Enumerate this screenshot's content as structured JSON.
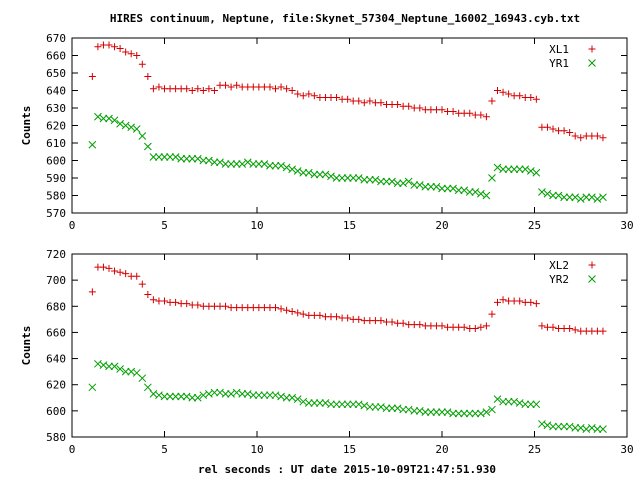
{
  "title": "HIRES continuum, Neptune, file:Skynet_57304_Neptune_16002_16943.cyb.txt",
  "xlabel": "rel seconds : UT date 2015-10-09T21:47:51.930",
  "colors": {
    "red": "#d40000",
    "green": "#00a000",
    "axis": "#000000"
  },
  "chart_data": [
    {
      "type": "scatter",
      "ylabel": "Counts",
      "xlim": [
        0,
        30
      ],
      "ylim": [
        570,
        670
      ],
      "xticks": [
        0,
        5,
        10,
        15,
        20,
        25,
        30
      ],
      "yticks": [
        570,
        580,
        590,
        600,
        610,
        620,
        630,
        640,
        650,
        660,
        670
      ],
      "legend_position": "top-right",
      "x": [
        1.1,
        1.4,
        1.7,
        2.0,
        2.3,
        2.6,
        2.9,
        3.2,
        3.5,
        3.8,
        4.1,
        4.4,
        4.7,
        5.0,
        5.3,
        5.6,
        5.9,
        6.2,
        6.5,
        6.8,
        7.1,
        7.4,
        7.7,
        8.0,
        8.3,
        8.6,
        8.9,
        9.2,
        9.5,
        9.8,
        10.1,
        10.4,
        10.7,
        11.0,
        11.3,
        11.6,
        11.9,
        12.2,
        12.5,
        12.8,
        13.1,
        13.4,
        13.7,
        14.0,
        14.3,
        14.6,
        14.9,
        15.2,
        15.5,
        15.8,
        16.1,
        16.4,
        16.7,
        17.0,
        17.3,
        17.6,
        17.9,
        18.2,
        18.5,
        18.8,
        19.1,
        19.4,
        19.7,
        20.0,
        20.3,
        20.6,
        20.9,
        21.2,
        21.5,
        21.8,
        22.1,
        22.4,
        22.7,
        23.0,
        23.3,
        23.6,
        23.9,
        24.2,
        24.5,
        24.8,
        25.1,
        25.4,
        25.7,
        26.0,
        26.3,
        26.6,
        26.9,
        27.2,
        27.5,
        27.8,
        28.1,
        28.4,
        28.7
      ],
      "series": [
        {
          "name": "XL1",
          "marker": "plus",
          "color": "#d40000",
          "values": [
            648,
            665,
            666,
            666,
            665,
            664,
            662,
            661,
            660,
            655,
            648,
            641,
            642,
            641,
            641,
            641,
            641,
            641,
            640,
            641,
            640,
            641,
            640,
            643,
            643,
            642,
            643,
            642,
            642,
            642,
            642,
            642,
            642,
            641,
            642,
            641,
            640,
            638,
            637,
            638,
            637,
            636,
            636,
            636,
            636,
            635,
            635,
            634,
            634,
            633,
            634,
            633,
            633,
            632,
            632,
            632,
            631,
            631,
            630,
            630,
            629,
            629,
            629,
            629,
            628,
            628,
            627,
            627,
            627,
            626,
            626,
            625,
            634,
            640,
            639,
            638,
            637,
            637,
            636,
            636,
            635,
            null,
            null,
            null,
            null,
            null,
            null,
            null,
            null,
            null,
            null,
            null,
            null
          ]
        },
        {
          "name": "YR1",
          "marker": "cross",
          "color": "#00a000",
          "values": [
            609,
            625,
            624,
            624,
            623,
            621,
            620,
            619,
            618,
            614,
            608,
            602,
            602,
            602,
            602,
            602,
            601,
            601,
            601,
            601,
            600,
            600,
            599,
            599,
            598,
            598,
            598,
            598,
            599,
            598,
            598,
            598,
            597,
            597,
            597,
            596,
            595,
            594,
            593,
            593,
            592,
            592,
            592,
            591,
            590,
            590,
            590,
            590,
            590,
            589,
            589,
            589,
            588,
            588,
            588,
            587,
            587,
            588,
            586,
            586,
            585,
            585,
            585,
            584,
            584,
            584,
            583,
            583,
            582,
            582,
            581,
            580,
            590,
            596,
            595,
            595,
            595,
            595,
            595,
            594,
            593,
            null,
            null,
            null,
            null,
            null,
            null,
            null,
            null,
            null,
            null,
            null,
            null
          ]
        }
      ],
      "tail": {
        "x": [
          25.4,
          25.7,
          26.0,
          26.3,
          26.6,
          26.9,
          27.2,
          27.5,
          27.8,
          28.1,
          28.4,
          28.7
        ],
        "XL1": [
          619,
          619,
          618,
          617,
          617,
          616,
          614,
          613,
          614,
          614,
          614,
          613
        ],
        "YR1": [
          582,
          581,
          580,
          580,
          579,
          579,
          579,
          578,
          579,
          579,
          578,
          579
        ]
      }
    },
    {
      "type": "scatter",
      "ylabel": "Counts",
      "xlim": [
        0,
        30
      ],
      "ylim": [
        580,
        720
      ],
      "xticks": [
        0,
        5,
        10,
        15,
        20,
        25,
        30
      ],
      "yticks": [
        580,
        600,
        620,
        640,
        660,
        680,
        700,
        720
      ],
      "legend_position": "top-right",
      "x": [
        1.1,
        1.4,
        1.7,
        2.0,
        2.3,
        2.6,
        2.9,
        3.2,
        3.5,
        3.8,
        4.1,
        4.4,
        4.7,
        5.0,
        5.3,
        5.6,
        5.9,
        6.2,
        6.5,
        6.8,
        7.1,
        7.4,
        7.7,
        8.0,
        8.3,
        8.6,
        8.9,
        9.2,
        9.5,
        9.8,
        10.1,
        10.4,
        10.7,
        11.0,
        11.3,
        11.6,
        11.9,
        12.2,
        12.5,
        12.8,
        13.1,
        13.4,
        13.7,
        14.0,
        14.3,
        14.6,
        14.9,
        15.2,
        15.5,
        15.8,
        16.1,
        16.4,
        16.7,
        17.0,
        17.3,
        17.6,
        17.9,
        18.2,
        18.5,
        18.8,
        19.1,
        19.4,
        19.7,
        20.0,
        20.3,
        20.6,
        20.9,
        21.2,
        21.5,
        21.8,
        22.1,
        22.4,
        22.7,
        23.0,
        23.3,
        23.6,
        23.9,
        24.2,
        24.5,
        24.8,
        25.1,
        25.4,
        25.7,
        26.0,
        26.3,
        26.6,
        26.9,
        27.2,
        27.5,
        27.8,
        28.1,
        28.4,
        28.7
      ],
      "series": [
        {
          "name": "XL2",
          "marker": "plus",
          "color": "#d40000",
          "values": [
            691,
            710,
            710,
            709,
            707,
            706,
            705,
            703,
            703,
            697,
            689,
            685,
            684,
            684,
            683,
            683,
            682,
            682,
            681,
            681,
            680,
            680,
            680,
            680,
            680,
            679,
            679,
            679,
            679,
            679,
            679,
            679,
            679,
            679,
            678,
            677,
            676,
            675,
            674,
            673,
            673,
            673,
            672,
            672,
            672,
            671,
            671,
            670,
            670,
            669,
            669,
            669,
            669,
            668,
            668,
            667,
            667,
            666,
            666,
            666,
            665,
            665,
            665,
            665,
            664,
            664,
            664,
            664,
            663,
            663,
            664,
            665,
            674,
            683,
            685,
            684,
            684,
            684,
            683,
            683,
            682,
            null,
            null,
            null,
            null,
            null,
            null,
            null,
            null,
            null,
            null,
            null,
            null
          ]
        },
        {
          "name": "YR2",
          "marker": "cross",
          "color": "#00a000",
          "values": [
            618,
            636,
            635,
            634,
            634,
            632,
            630,
            630,
            629,
            625,
            618,
            613,
            612,
            611,
            611,
            611,
            611,
            611,
            610,
            610,
            612,
            613,
            614,
            614,
            613,
            613,
            614,
            613,
            613,
            612,
            612,
            612,
            612,
            612,
            611,
            610,
            610,
            609,
            607,
            606,
            606,
            606,
            606,
            605,
            605,
            605,
            605,
            605,
            605,
            604,
            603,
            603,
            603,
            602,
            602,
            602,
            601,
            601,
            600,
            600,
            599,
            599,
            599,
            599,
            599,
            598,
            598,
            598,
            598,
            598,
            598,
            599,
            601,
            609,
            607,
            607,
            607,
            606,
            605,
            605,
            605,
            null,
            null,
            null,
            null,
            null,
            null,
            null,
            null,
            null,
            null,
            null,
            null
          ]
        }
      ],
      "tail": {
        "x": [
          25.4,
          25.7,
          26.0,
          26.3,
          26.6,
          26.9,
          27.2,
          27.5,
          27.8,
          28.1,
          28.4,
          28.7
        ],
        "XL2": [
          665,
          664,
          664,
          663,
          663,
          663,
          662,
          661,
          661,
          661,
          661,
          661
        ],
        "YR2": [
          590,
          589,
          588,
          588,
          588,
          588,
          587,
          587,
          586,
          587,
          586,
          586
        ]
      }
    }
  ]
}
